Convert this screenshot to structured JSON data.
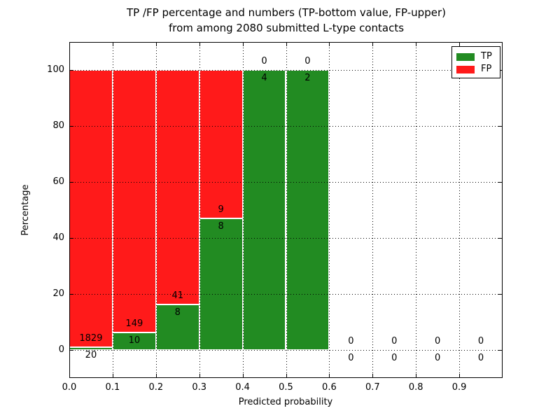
{
  "figure": {
    "title_line1": "TP /FP percentage and numbers (TP-bottom value, FP-upper)",
    "title_line2": "from among 2080 submitted L-type contacts"
  },
  "chart_data": {
    "type": "bar",
    "stacked": true,
    "title": "TP /FP percentage and numbers (TP-bottom value, FP-upper) from among 2080 submitted L-type contacts",
    "xlabel": "Predicted probability",
    "ylabel": "Percentage",
    "xlim": [
      0.0,
      1.0
    ],
    "ylim": [
      -10,
      110
    ],
    "grid": true,
    "background": "#ffffff",
    "bin_edges": [
      0.0,
      0.1,
      0.2,
      0.3,
      0.4,
      0.5,
      0.6,
      0.7,
      0.8,
      0.9,
      1.0
    ],
    "x_tick_values": [
      0.0,
      0.1,
      0.2,
      0.3,
      0.4,
      0.5,
      0.6,
      0.7,
      0.8,
      0.9
    ],
    "x_tick_labels": [
      "0.0",
      "0.1",
      "0.2",
      "0.3",
      "0.4",
      "0.5",
      "0.6",
      "0.7",
      "0.8",
      "0.9"
    ],
    "y_tick_values": [
      0,
      20,
      40,
      60,
      80,
      100
    ],
    "y_tick_labels": [
      "0",
      "20",
      "40",
      "60",
      "80",
      "100"
    ],
    "series": [
      {
        "name": "TP",
        "color": "#228b22",
        "counts": [
          20,
          10,
          8,
          8,
          4,
          2,
          0,
          0,
          0,
          0
        ],
        "percent": [
          1.1,
          6.3,
          16.3,
          47.1,
          100,
          100,
          0,
          0,
          0,
          0
        ],
        "label_placement": "below segment boundary"
      },
      {
        "name": "FP",
        "color": "#ff1a1a",
        "counts": [
          1829,
          149,
          41,
          9,
          0,
          0,
          0,
          0,
          0,
          0
        ],
        "percent": [
          98.9,
          93.7,
          83.7,
          52.9,
          0,
          0,
          0,
          0,
          0,
          0
        ],
        "label_placement": "above segment boundary"
      }
    ],
    "legend": {
      "position": "upper right",
      "entries": [
        {
          "label": "TP",
          "color": "#228b22"
        },
        {
          "label": "FP",
          "color": "#ff1a1a"
        }
      ]
    }
  }
}
